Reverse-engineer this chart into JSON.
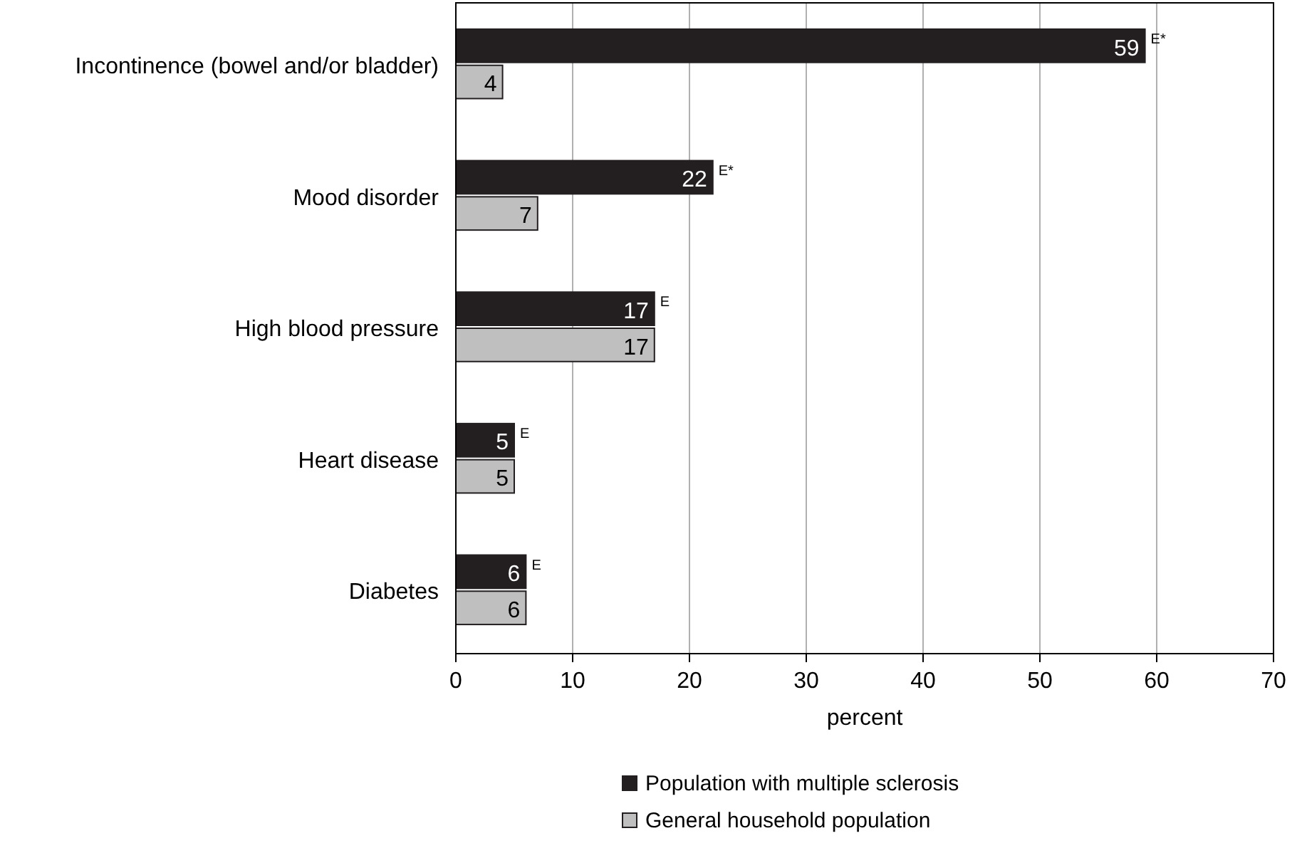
{
  "chart_data": {
    "type": "bar",
    "orientation": "horizontal",
    "xlabel": "percent",
    "categories": [
      "Incontinence (bowel and/or bladder)",
      "Mood disorder",
      "High blood pressure",
      "Heart disease",
      "Diabetes"
    ],
    "series": [
      {
        "name": "Population with multiple sclerosis",
        "color": "#231f20",
        "values": [
          59,
          22,
          17,
          5,
          6
        ]
      },
      {
        "name": "General household population",
        "color": "#bfbfbf",
        "values": [
          4,
          7,
          17,
          5,
          6
        ]
      }
    ],
    "xlim": [
      0,
      70
    ],
    "xticks": [
      0,
      10,
      20,
      30,
      40,
      50,
      60,
      70
    ],
    "grid": "x",
    "legend": "bottom",
    "data_labels": true,
    "annotations": [
      {
        "text": "E*",
        "x": 59,
        "y": "Incontinence (bowel and/or bladder)"
      },
      {
        "text": "E*",
        "x": 22,
        "y": "Mood disorder"
      },
      {
        "text": "E",
        "x": 17,
        "y": "High blood pressure"
      },
      {
        "text": "E",
        "x": 5,
        "y": "Heart disease"
      },
      {
        "text": "E",
        "x": 6,
        "y": "Diabetes"
      }
    ]
  }
}
